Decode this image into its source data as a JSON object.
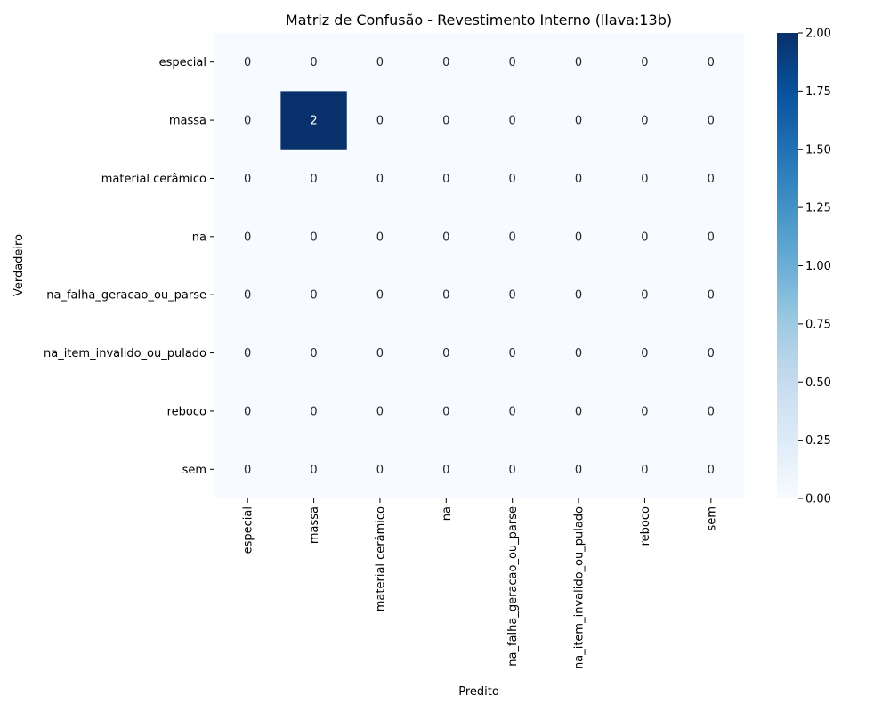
{
  "chart_data": {
    "type": "heatmap",
    "title": "Matriz de Confusão - Revestimento Interno (llava:13b)",
    "xlabel": "Predito",
    "ylabel": "Verdadeiro",
    "x_categories": [
      "especial",
      "massa",
      "material cerâmico",
      "na",
      "na_falha_geracao_ou_parse",
      "na_item_invalido_ou_pulado",
      "reboco",
      "sem"
    ],
    "y_categories": [
      "especial",
      "massa",
      "material cerâmico",
      "na",
      "na_falha_geracao_ou_parse",
      "na_item_invalido_ou_pulado",
      "reboco",
      "sem"
    ],
    "values": [
      [
        0,
        0,
        0,
        0,
        0,
        0,
        0,
        0
      ],
      [
        0,
        2,
        0,
        0,
        0,
        0,
        0,
        0
      ],
      [
        0,
        0,
        0,
        0,
        0,
        0,
        0,
        0
      ],
      [
        0,
        0,
        0,
        0,
        0,
        0,
        0,
        0
      ],
      [
        0,
        0,
        0,
        0,
        0,
        0,
        0,
        0
      ],
      [
        0,
        0,
        0,
        0,
        0,
        0,
        0,
        0
      ],
      [
        0,
        0,
        0,
        0,
        0,
        0,
        0,
        0
      ],
      [
        0,
        0,
        0,
        0,
        0,
        0,
        0,
        0
      ]
    ],
    "colorbar": {
      "range": [
        0,
        2
      ],
      "ticks": [
        "0.00",
        "0.25",
        "0.50",
        "0.75",
        "1.00",
        "1.25",
        "1.50",
        "1.75",
        "2.00"
      ],
      "colormap": "Blues",
      "color_low": "#f7fbff",
      "color_high": "#08306b"
    }
  }
}
